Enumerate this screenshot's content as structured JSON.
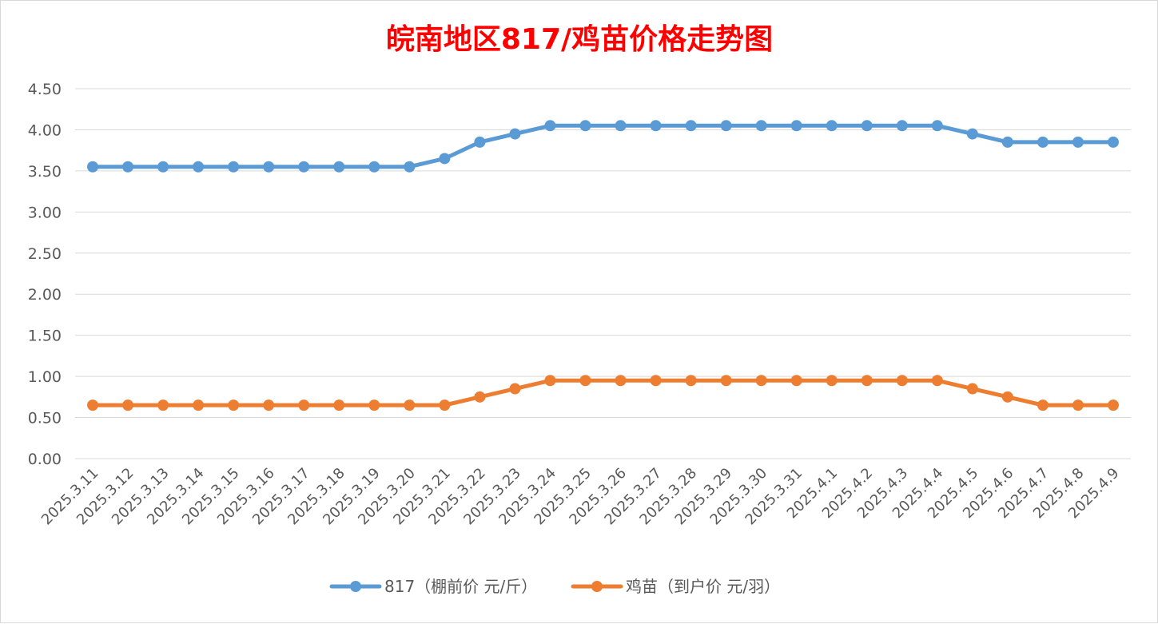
{
  "chart_data": {
    "type": "line",
    "title": "皖南地区817/鸡苗价格走势图",
    "title_color": "#ff0000",
    "xlabel": "",
    "ylabel": "",
    "ylim": [
      0,
      4.5
    ],
    "y_ticks": [
      "0.00",
      "0.50",
      "1.00",
      "1.50",
      "2.00",
      "2.50",
      "3.00",
      "3.50",
      "4.00",
      "4.50"
    ],
    "grid": true,
    "legend_position": "bottom",
    "categories": [
      "2025.3.11",
      "2025.3.12",
      "2025.3.13",
      "2025.3.14",
      "2025.3.15",
      "2025.3.16",
      "2025.3.17",
      "2025.3.18",
      "2025.3.19",
      "2025.3.20",
      "2025.3.21",
      "2025.3.22",
      "2025.3.23",
      "2025.3.24",
      "2025.3.25",
      "2025.3.26",
      "2025.3.27",
      "2025.3.28",
      "2025.3.29",
      "2025.3.30",
      "2025.3.31",
      "2025.4.1",
      "2025.4.2",
      "2025.4.3",
      "2025.4.4",
      "2025.4.5",
      "2025.4.6",
      "2025.4.7",
      "2025.4.8",
      "2025.4.9"
    ],
    "series": [
      {
        "name": "817（棚前价 元/斤）",
        "color": "#5b9bd5",
        "values": [
          3.55,
          3.55,
          3.55,
          3.55,
          3.55,
          3.55,
          3.55,
          3.55,
          3.55,
          3.55,
          3.65,
          3.85,
          3.95,
          4.05,
          4.05,
          4.05,
          4.05,
          4.05,
          4.05,
          4.05,
          4.05,
          4.05,
          4.05,
          4.05,
          4.05,
          3.95,
          3.85,
          3.85,
          3.85,
          3.85
        ]
      },
      {
        "name": "鸡苗（到户价 元/羽）",
        "color": "#ed7d31",
        "values": [
          0.65,
          0.65,
          0.65,
          0.65,
          0.65,
          0.65,
          0.65,
          0.65,
          0.65,
          0.65,
          0.65,
          0.75,
          0.85,
          0.95,
          0.95,
          0.95,
          0.95,
          0.95,
          0.95,
          0.95,
          0.95,
          0.95,
          0.95,
          0.95,
          0.95,
          0.85,
          0.75,
          0.65,
          0.65,
          0.65
        ]
      }
    ]
  }
}
